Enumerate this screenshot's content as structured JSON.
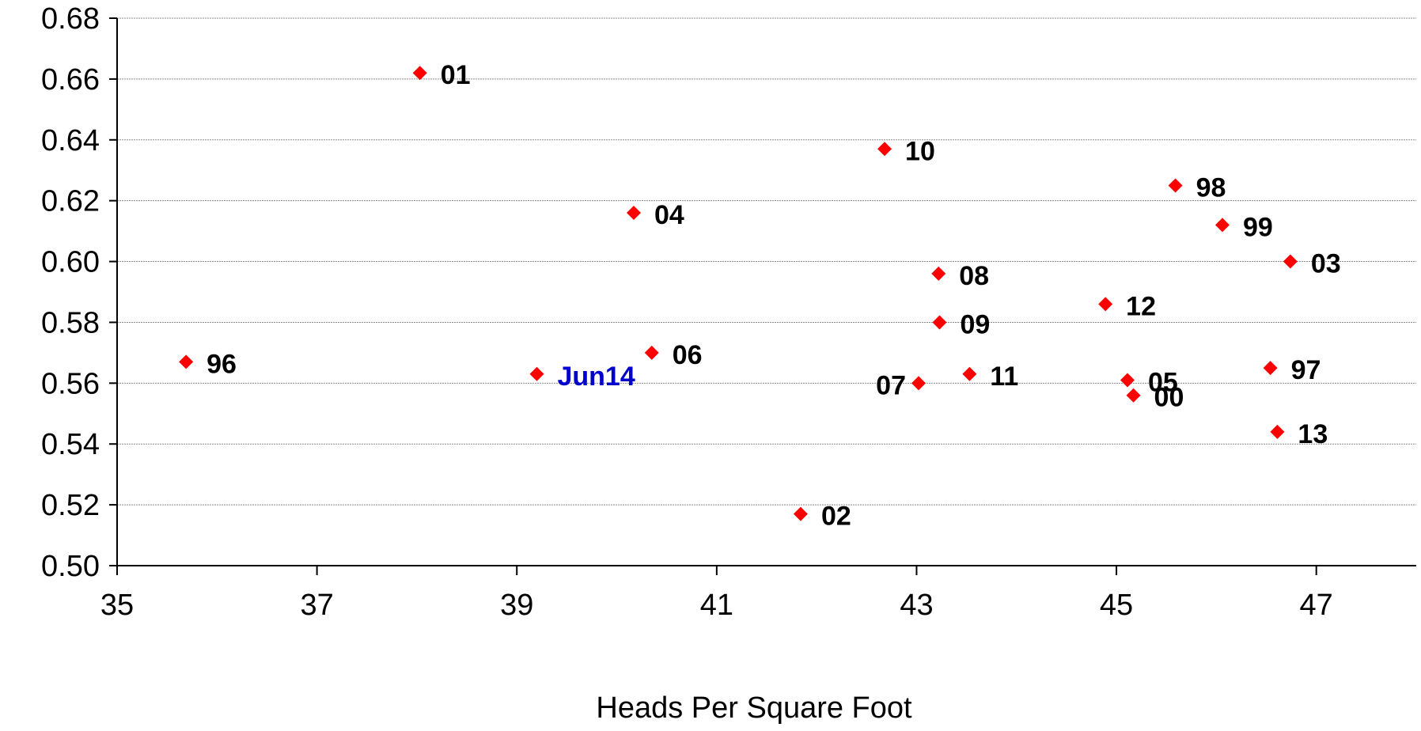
{
  "chart_data": {
    "type": "scatter",
    "title": "",
    "xlabel": "Heads Per Square Foot",
    "ylabel": "",
    "xlim": [
      35,
      48
    ],
    "ylim": [
      0.5,
      0.68
    ],
    "x_ticks": [
      "35",
      "37",
      "39",
      "41",
      "43",
      "45",
      "47"
    ],
    "y_ticks": [
      "0.50",
      "0.52",
      "0.54",
      "0.56",
      "0.58",
      "0.60",
      "0.62",
      "0.64",
      "0.66",
      "0.68"
    ],
    "grid": "horizontal",
    "marker_color": "#ff0000",
    "label_color": "#000000",
    "highlight_label_color": "#0000cc",
    "points": [
      {
        "label": "01",
        "x": 38.03,
        "y": 0.662
      },
      {
        "label": "10",
        "x": 42.68,
        "y": 0.637
      },
      {
        "label": "04",
        "x": 40.17,
        "y": 0.616
      },
      {
        "label": "98",
        "x": 45.59,
        "y": 0.625
      },
      {
        "label": "99",
        "x": 46.06,
        "y": 0.612
      },
      {
        "label": "03",
        "x": 46.74,
        "y": 0.6
      },
      {
        "label": "08",
        "x": 43.22,
        "y": 0.596
      },
      {
        "label": "12",
        "x": 44.89,
        "y": 0.586
      },
      {
        "label": "09",
        "x": 43.23,
        "y": 0.58
      },
      {
        "label": "96",
        "x": 35.69,
        "y": 0.567
      },
      {
        "label": "06",
        "x": 40.35,
        "y": 0.57
      },
      {
        "label": "Jun14",
        "x": 39.2,
        "y": 0.563,
        "highlight": true
      },
      {
        "label": "07",
        "x": 43.02,
        "y": 0.56
      },
      {
        "label": "11",
        "x": 43.53,
        "y": 0.563
      },
      {
        "label": "05",
        "x": 45.11,
        "y": 0.561
      },
      {
        "label": "00",
        "x": 45.17,
        "y": 0.556
      },
      {
        "label": "97",
        "x": 46.54,
        "y": 0.565
      },
      {
        "label": "13",
        "x": 46.61,
        "y": 0.544
      },
      {
        "label": "02",
        "x": 41.84,
        "y": 0.517
      }
    ]
  }
}
